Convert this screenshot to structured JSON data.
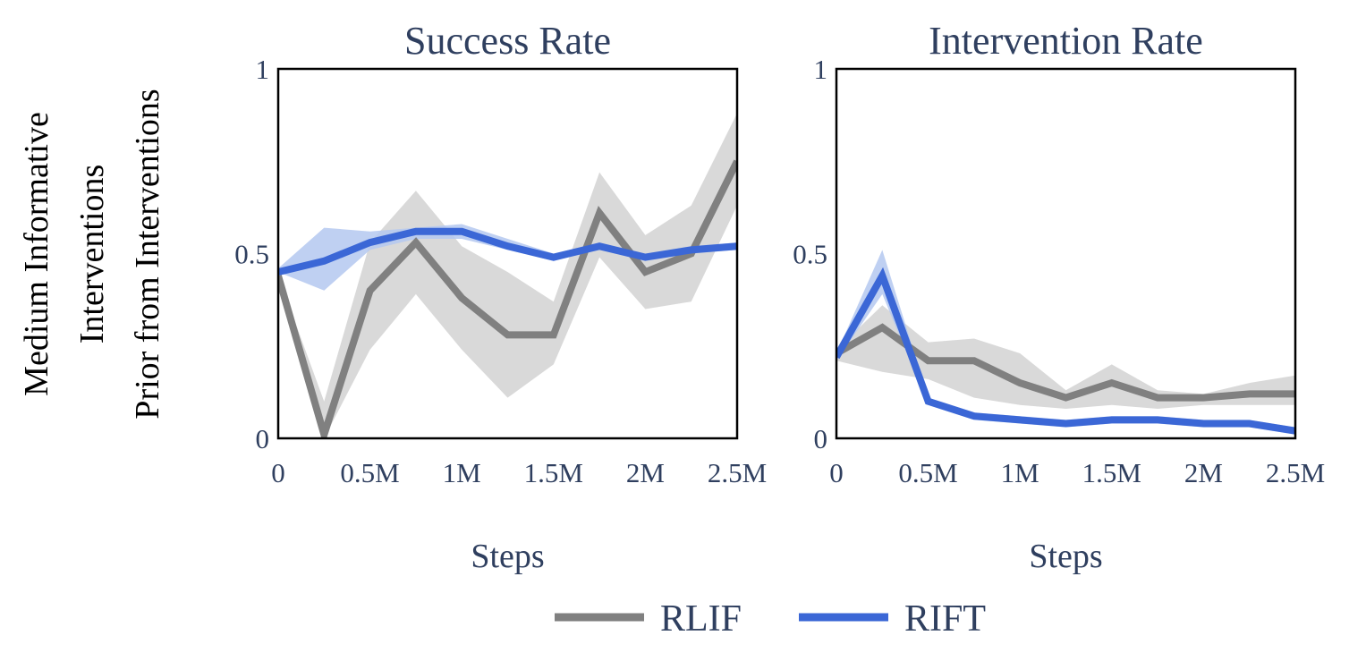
{
  "row_label": [
    "Medium Informative",
    "Interventions",
    "Prior from Interventions"
  ],
  "colors": {
    "text": "#2f3f5f",
    "rlif_line": "#808080",
    "rlif_band": "#d9d9d9",
    "rift_line": "#3b67d6",
    "rift_band": "#b4c8f0",
    "frame": "#000000"
  },
  "legend": {
    "items": [
      {
        "label": "RLIF",
        "series": "RLIF"
      },
      {
        "label": "RIFT",
        "series": "RIFT"
      }
    ],
    "position": "bottom-center"
  },
  "chart_data": [
    {
      "type": "line",
      "title": "Success Rate",
      "xlabel": "Steps",
      "ylabel": "",
      "xlim": [
        0,
        2500000
      ],
      "ylim": [
        0,
        1
      ],
      "xticks": [
        0,
        500000,
        1000000,
        1500000,
        2000000,
        2500000
      ],
      "xtick_labels": [
        "0",
        "0.5M",
        "1M",
        "1.5M",
        "2M",
        "2.5M"
      ],
      "yticks": [
        0,
        0.5,
        1
      ],
      "ytick_labels": [
        "0",
        "0.5",
        "1"
      ],
      "grid": false,
      "x": [
        0,
        250000,
        500000,
        750000,
        1000000,
        1250000,
        1500000,
        1750000,
        2000000,
        2250000,
        2500000
      ],
      "series": [
        {
          "name": "RLIF",
          "values": [
            0.44,
            0.01,
            0.4,
            0.53,
            0.38,
            0.28,
            0.28,
            0.61,
            0.45,
            0.5,
            0.75
          ],
          "lower": [
            0.44,
            0.0,
            0.24,
            0.39,
            0.24,
            0.11,
            0.2,
            0.49,
            0.35,
            0.37,
            0.63
          ],
          "upper": [
            0.44,
            0.1,
            0.53,
            0.67,
            0.52,
            0.45,
            0.37,
            0.72,
            0.55,
            0.63,
            0.88
          ]
        },
        {
          "name": "RIFT",
          "values": [
            0.45,
            0.48,
            0.53,
            0.56,
            0.56,
            0.52,
            0.49,
            0.52,
            0.49,
            0.51,
            0.52
          ],
          "lower": [
            0.45,
            0.4,
            0.51,
            0.54,
            0.54,
            0.51,
            0.48,
            0.51,
            0.48,
            0.5,
            0.51
          ],
          "upper": [
            0.46,
            0.57,
            0.56,
            0.57,
            0.58,
            0.54,
            0.5,
            0.53,
            0.5,
            0.52,
            0.53
          ]
        }
      ]
    },
    {
      "type": "line",
      "title": "Intervention Rate",
      "xlabel": "Steps",
      "ylabel": "",
      "xlim": [
        0,
        2500000
      ],
      "ylim": [
        0,
        1
      ],
      "xticks": [
        0,
        500000,
        1000000,
        1500000,
        2000000,
        2500000
      ],
      "xtick_labels": [
        "0",
        "0.5M",
        "1M",
        "1.5M",
        "2M",
        "2.5M"
      ],
      "yticks": [
        0,
        0.5,
        1
      ],
      "ytick_labels": [
        "0",
        "0.5",
        "1"
      ],
      "grid": false,
      "x": [
        0,
        250000,
        500000,
        750000,
        1000000,
        1250000,
        1500000,
        1750000,
        2000000,
        2250000,
        2500000
      ],
      "series": [
        {
          "name": "RLIF",
          "values": [
            0.23,
            0.3,
            0.21,
            0.21,
            0.15,
            0.11,
            0.15,
            0.11,
            0.11,
            0.12,
            0.12
          ],
          "lower": [
            0.21,
            0.18,
            0.16,
            0.11,
            0.09,
            0.08,
            0.09,
            0.08,
            0.09,
            0.09,
            0.09
          ],
          "upper": [
            0.24,
            0.36,
            0.26,
            0.27,
            0.23,
            0.13,
            0.2,
            0.13,
            0.12,
            0.15,
            0.17
          ]
        },
        {
          "name": "RIFT",
          "values": [
            0.22,
            0.44,
            0.1,
            0.06,
            0.05,
            0.04,
            0.05,
            0.05,
            0.04,
            0.04,
            0.02
          ],
          "lower": [
            0.21,
            0.39,
            0.09,
            0.05,
            0.04,
            0.03,
            0.04,
            0.04,
            0.03,
            0.03,
            0.01
          ],
          "upper": [
            0.23,
            0.51,
            0.11,
            0.07,
            0.06,
            0.05,
            0.06,
            0.06,
            0.05,
            0.05,
            0.03
          ]
        }
      ]
    }
  ]
}
